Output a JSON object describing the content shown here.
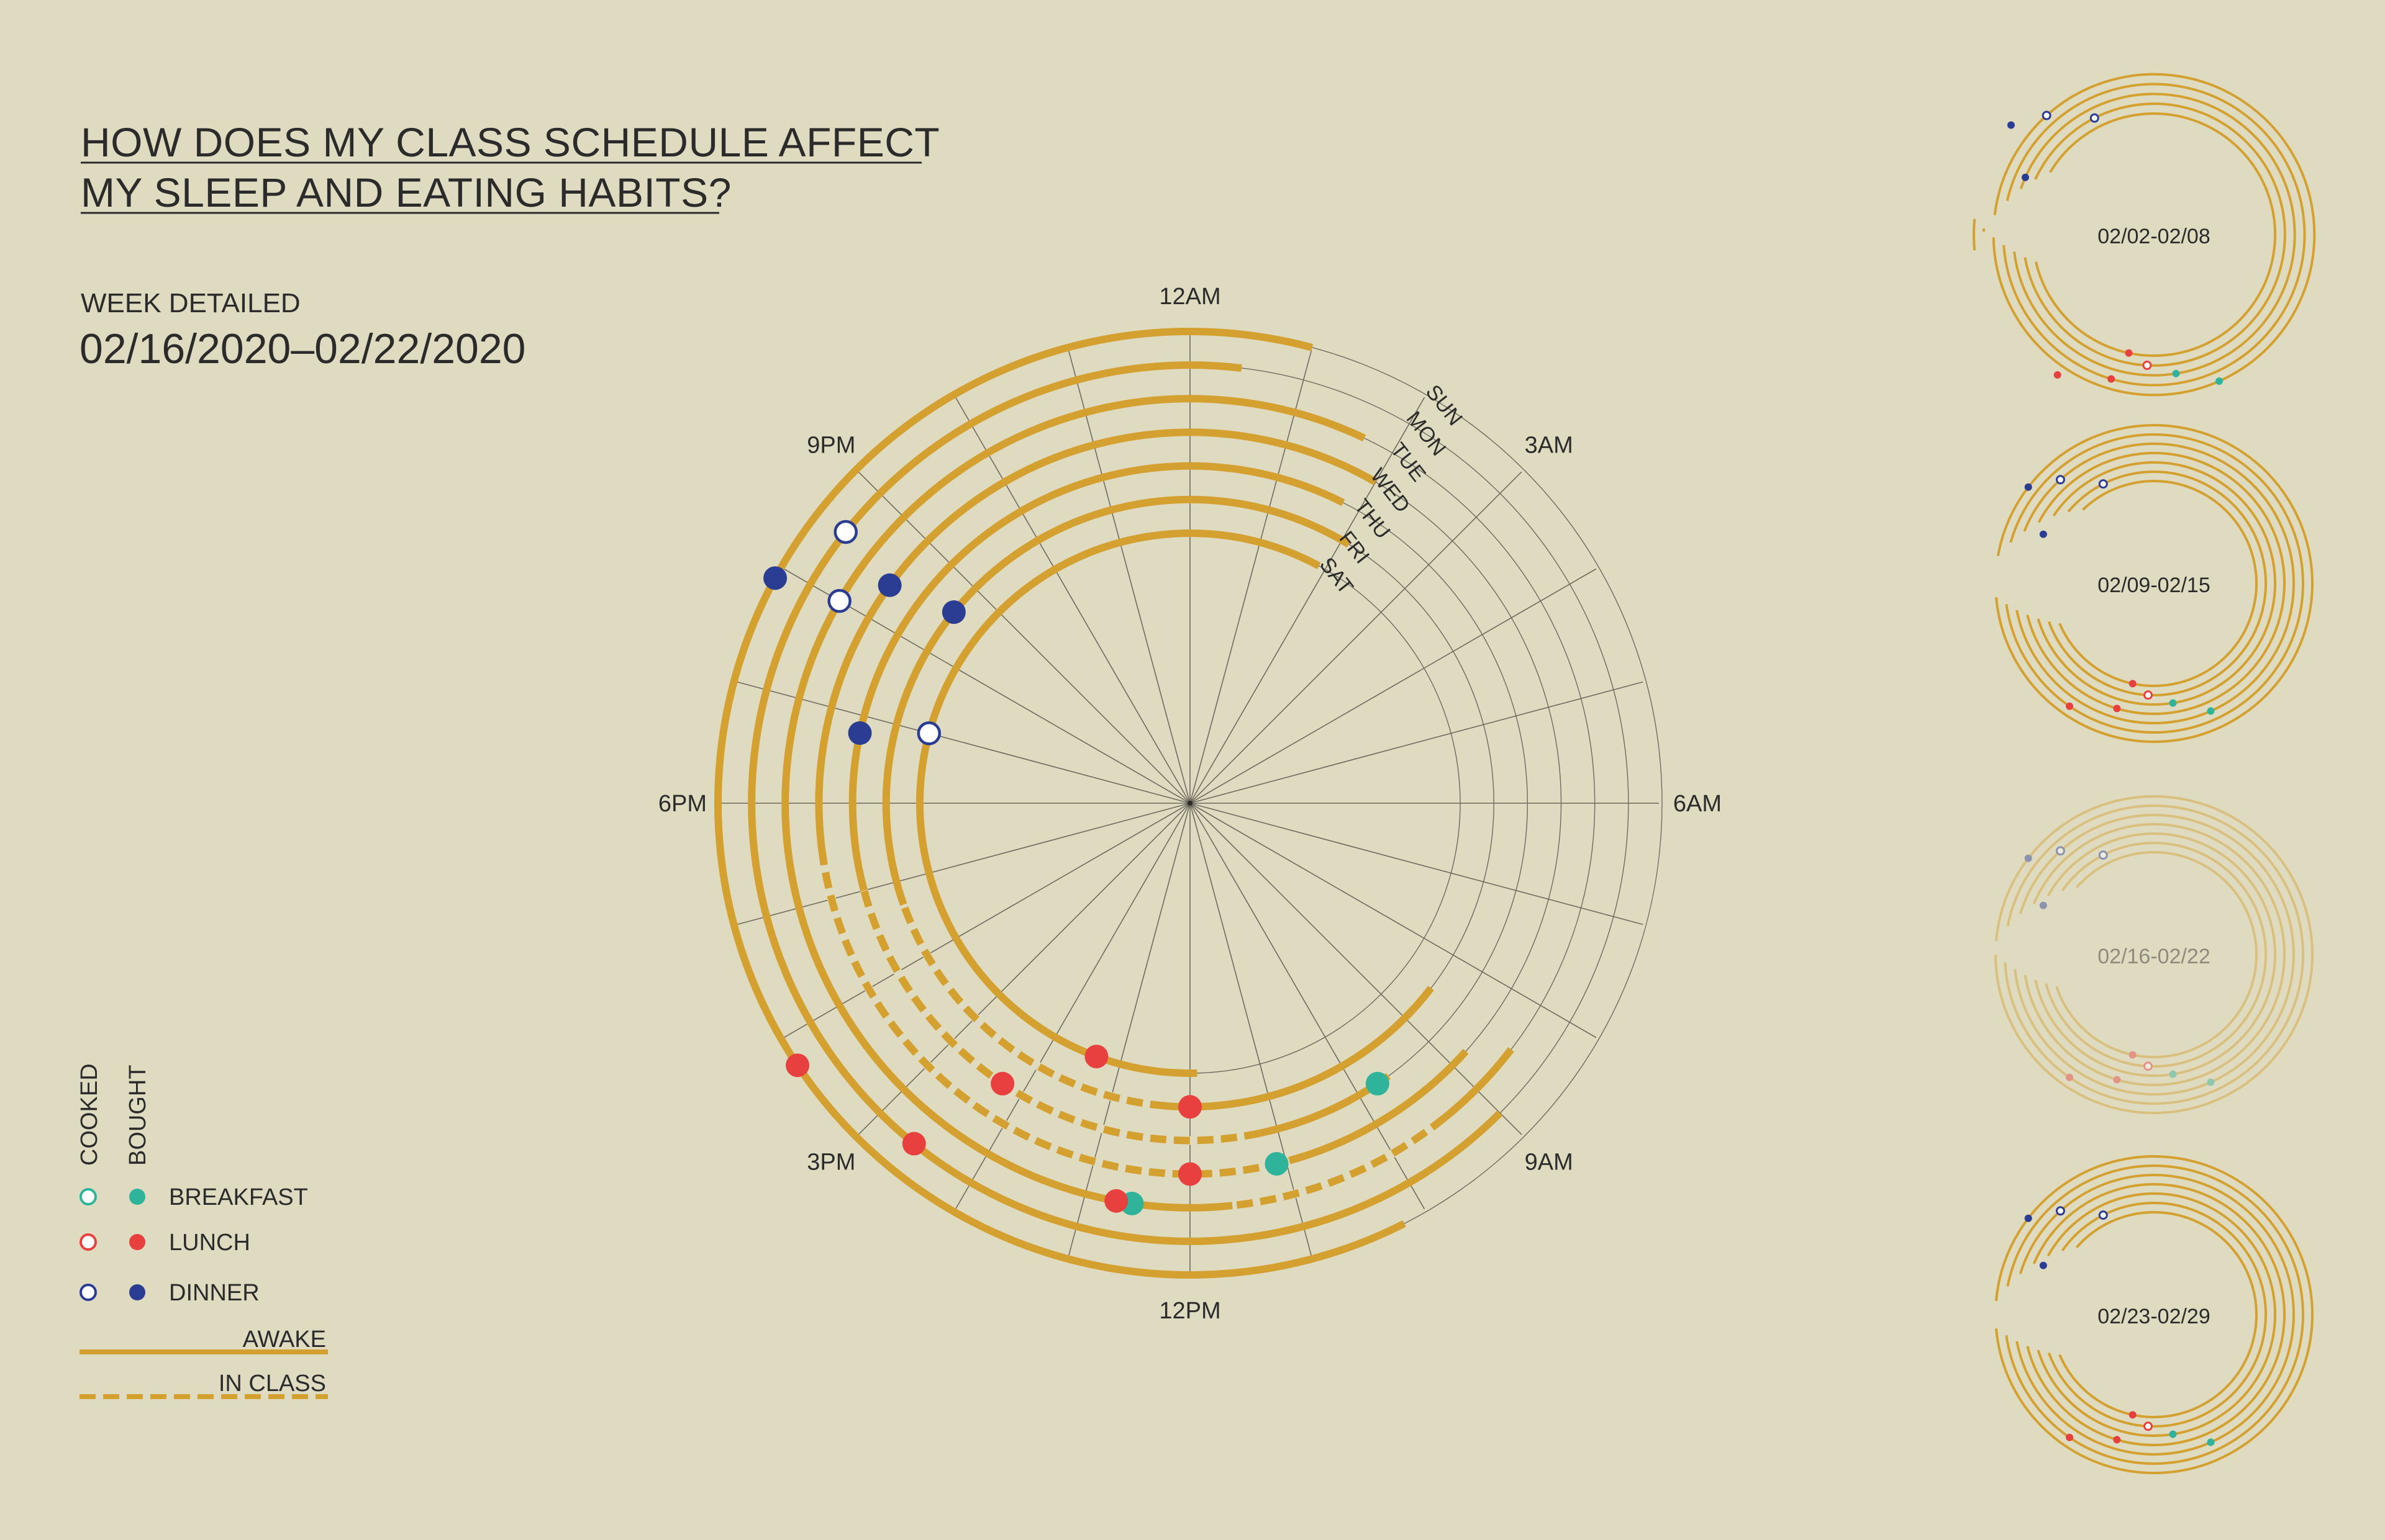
{
  "title": {
    "line1": "HOW DOES MY CLASS SCHEDULE AFFECT",
    "line2": "MY SLEEP AND EATING HABITS?"
  },
  "week_detailed": {
    "label": "WEEK DETAILED",
    "range": "02/16/2020–02/22/2020"
  },
  "legend": {
    "cooked_label": "COOKED",
    "bought_label": "BOUGHT",
    "meals": [
      {
        "label": "BREAKFAST",
        "color": "#2fb39a"
      },
      {
        "label": "LUNCH",
        "color": "#e8403f"
      },
      {
        "label": "DINNER",
        "color": "#2a3d93"
      }
    ],
    "awake_label": "AWAKE",
    "in_class_label": "IN CLASS"
  },
  "colors": {
    "background": "#dfdbc1",
    "track": "#d4a02f",
    "grid": "#6e6b5e",
    "breakfast": "#2fb39a",
    "lunch": "#e8403f",
    "dinner": "#2a3d93"
  },
  "chart_data": {
    "type": "radial",
    "hour_labels": [
      {
        "hour": 0,
        "label": "12AM"
      },
      {
        "hour": 3,
        "label": "3AM"
      },
      {
        "hour": 6,
        "label": "6AM"
      },
      {
        "hour": 9,
        "label": "9AM"
      },
      {
        "hour": 12,
        "label": "12PM"
      },
      {
        "hour": 15,
        "label": "3PM"
      },
      {
        "hour": 18,
        "label": "6PM"
      },
      {
        "hour": 21,
        "label": "9PM"
      }
    ],
    "days": [
      "SUN",
      "MON",
      "TUE",
      "WED",
      "THU",
      "FRI",
      "SAT"
    ],
    "awake": [
      {
        "day": "SUN",
        "start": 10.2,
        "end": 1.0
      },
      {
        "day": "MON",
        "start": 9.0,
        "end": 0.45
      },
      {
        "day": "TUE",
        "start": 8.5,
        "end": 1.7
      },
      {
        "day": "WED",
        "start": 8.8,
        "end": 2.0
      },
      {
        "day": "THU",
        "start": 9.6,
        "end": 1.8
      },
      {
        "day": "FRI",
        "start": 8.5,
        "end": 2.1
      },
      {
        "day": "SAT",
        "start": 11.9,
        "end": 1.9
      }
    ],
    "in_class": [
      {
        "day": "WED",
        "start": 10.8,
        "end": 17.4
      },
      {
        "day": "THU",
        "start": 11.2,
        "end": 17.0
      },
      {
        "day": "FRI",
        "start": 12.3,
        "end": 16.7
      },
      {
        "day": "TUE",
        "start": 9.4,
        "end": 11.6
      }
    ],
    "meals": [
      {
        "day": "TUE",
        "hour": 12.55,
        "meal": "breakfast",
        "type": "bought"
      },
      {
        "day": "THU",
        "hour": 9.75,
        "meal": "breakfast",
        "type": "bought"
      },
      {
        "day": "WED",
        "hour": 11.1,
        "meal": "breakfast",
        "type": "bought"
      },
      {
        "day": "SUN",
        "hour": 15.75,
        "meal": "lunch",
        "type": "bought"
      },
      {
        "day": "MON",
        "hour": 14.6,
        "meal": "lunch",
        "type": "bought"
      },
      {
        "day": "TUE",
        "hour": 12.7,
        "meal": "lunch",
        "type": "bought"
      },
      {
        "day": "WED",
        "hour": 12.0,
        "meal": "lunch",
        "type": "bought"
      },
      {
        "day": "THU",
        "hour": 14.25,
        "meal": "lunch",
        "type": "bought"
      },
      {
        "day": "FRI",
        "hour": 12.0,
        "meal": "lunch",
        "type": "bought"
      },
      {
        "day": "SAT",
        "hour": 13.35,
        "meal": "lunch",
        "type": "bought"
      },
      {
        "day": "SUN",
        "hour": 19.9,
        "meal": "dinner",
        "type": "bought"
      },
      {
        "day": "MON",
        "hour": 20.55,
        "meal": "dinner",
        "type": "cooked"
      },
      {
        "day": "TUE",
        "hour": 20.0,
        "meal": "dinner",
        "type": "cooked"
      },
      {
        "day": "WED",
        "hour": 20.4,
        "meal": "dinner",
        "type": "bought"
      },
      {
        "day": "THU",
        "hour": 18.8,
        "meal": "dinner",
        "type": "bought"
      },
      {
        "day": "FRI",
        "hour": 20.6,
        "meal": "dinner",
        "type": "bought"
      },
      {
        "day": "SAT",
        "hour": 19.0,
        "meal": "dinner",
        "type": "cooked"
      }
    ]
  },
  "weeks": [
    {
      "label": "02/02-02/08",
      "faded": false
    },
    {
      "label": "02/09-02/15",
      "faded": false
    },
    {
      "label": "02/16-02/22",
      "faded": true
    },
    {
      "label": "02/23-02/29",
      "faded": false
    }
  ]
}
